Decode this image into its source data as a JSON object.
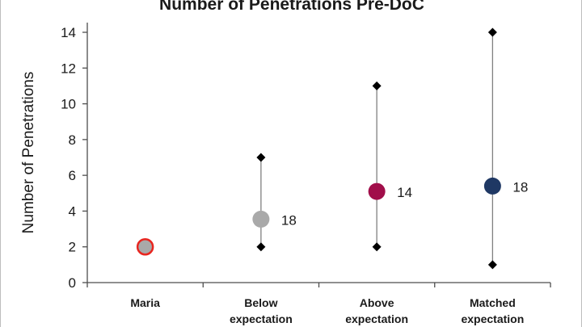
{
  "chart_data": {
    "type": "scatter",
    "title": "Number of Penetrations Pre-DoC",
    "xlabel": "",
    "ylabel": "Number of Penetrations",
    "ylim": [
      0,
      14
    ],
    "yticks": [
      0,
      2,
      4,
      6,
      8,
      10,
      12,
      14
    ],
    "categories": [
      {
        "name": "maria",
        "label_lines": [
          "Maria"
        ],
        "mean": 2,
        "min": null,
        "max": null,
        "count_label": null,
        "color": "#a9a9a9",
        "outline": "#e8251f"
      },
      {
        "name": "below",
        "label_lines": [
          "Below",
          "expectation"
        ],
        "mean": 3.55,
        "min": 2,
        "max": 7,
        "count_label": "18",
        "color": "#a9a9a9",
        "outline": null
      },
      {
        "name": "above",
        "label_lines": [
          "Above",
          "expectation"
        ],
        "mean": 5.1,
        "min": 2,
        "max": 11,
        "count_label": "14",
        "color": "#a10e4a",
        "outline": null
      },
      {
        "name": "matched",
        "label_lines": [
          "Matched",
          "expectation"
        ],
        "mean": 5.4,
        "min": 1,
        "max": 14,
        "count_label": "18",
        "color": "#1f3864",
        "outline": null
      }
    ]
  }
}
